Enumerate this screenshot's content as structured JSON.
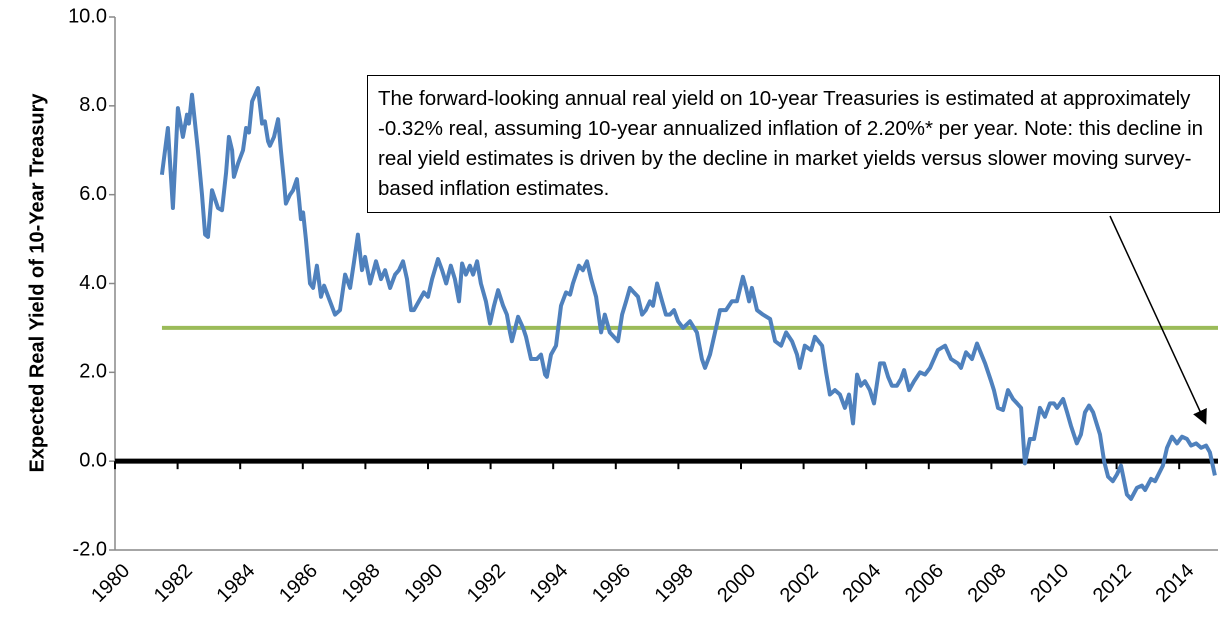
{
  "chart_data": {
    "type": "line",
    "y_label": "Expected Real Yield of 10-Year Treasury",
    "annotation": "The forward-looking annual real yield on 10-year Treasuries is estimated at approximately -0.32% real, assuming 10-year annualized inflation of 2.20%* per year.  Note: this decline in real yield estimates is driven by the decline in market yields versus slower moving survey-based inflation estimates.",
    "x": [
      1981.5,
      1981.69,
      1981.85,
      1982.01,
      1982.17,
      1982.3,
      1982.36,
      1982.46,
      1982.65,
      1982.78,
      1982.88,
      1982.97,
      1983.1,
      1983.29,
      1983.42,
      1983.55,
      1983.64,
      1983.74,
      1983.8,
      1983.93,
      1984.09,
      1984.19,
      1984.28,
      1984.38,
      1984.57,
      1984.7,
      1984.79,
      1984.89,
      1984.95,
      1985.08,
      1985.21,
      1985.3,
      1985.4,
      1985.46,
      1985.59,
      1985.69,
      1985.81,
      1985.88,
      1985.94,
      1986.01,
      1986.1,
      1986.23,
      1986.33,
      1986.45,
      1986.58,
      1986.68,
      1986.87,
      1987.03,
      1987.19,
      1987.35,
      1987.51,
      1987.64,
      1987.76,
      1987.89,
      1987.99,
      1988.15,
      1988.34,
      1988.5,
      1988.63,
      1988.79,
      1988.95,
      1989.07,
      1989.2,
      1989.33,
      1989.46,
      1989.55,
      1989.71,
      1989.87,
      1990.0,
      1990.13,
      1990.32,
      1990.45,
      1990.58,
      1990.73,
      1990.86,
      1990.99,
      1991.09,
      1991.21,
      1991.34,
      1991.44,
      1991.57,
      1991.69,
      1991.85,
      1991.98,
      1992.11,
      1992.24,
      1992.4,
      1992.52,
      1992.62,
      1992.68,
      1992.88,
      1993.04,
      1993.13,
      1993.29,
      1993.48,
      1993.61,
      1993.74,
      1993.8,
      1993.93,
      1994.09,
      1994.25,
      1994.41,
      1994.54,
      1994.63,
      1994.82,
      1994.95,
      1995.08,
      1995.21,
      1995.37,
      1995.53,
      1995.65,
      1995.81,
      1996.07,
      1996.2,
      1996.33,
      1996.45,
      1996.58,
      1996.71,
      1996.84,
      1996.96,
      1997.09,
      1997.19,
      1997.32,
      1997.48,
      1997.6,
      1997.73,
      1997.86,
      1997.99,
      1998.15,
      1998.37,
      1998.59,
      1998.75,
      1998.85,
      1999.01,
      1999.17,
      1999.33,
      1999.52,
      1999.71,
      1999.87,
      2000.06,
      2000.16,
      2000.26,
      2000.35,
      2000.51,
      2000.7,
      2000.93,
      2001.09,
      2001.28,
      2001.44,
      2001.63,
      2001.79,
      2001.88,
      2002.04,
      2002.24,
      2002.36,
      2002.59,
      2002.72,
      2002.84,
      2003.0,
      2003.16,
      2003.32,
      2003.45,
      2003.58,
      2003.71,
      2003.83,
      2003.96,
      2004.12,
      2004.25,
      2004.44,
      2004.57,
      2004.7,
      2004.82,
      2004.98,
      2005.11,
      2005.21,
      2005.37,
      2005.53,
      2005.72,
      2005.88,
      2006.04,
      2006.29,
      2006.52,
      2006.71,
      2006.93,
      2007.03,
      2007.19,
      2007.38,
      2007.54,
      2007.8,
      2007.99,
      2008.08,
      2008.21,
      2008.37,
      2008.53,
      2008.69,
      2008.82,
      2008.95,
      2009.07,
      2009.23,
      2009.36,
      2009.55,
      2009.71,
      2009.87,
      2010.0,
      2010.1,
      2010.29,
      2010.42,
      2010.54,
      2010.73,
      2010.86,
      2010.99,
      2011.12,
      2011.25,
      2011.47,
      2011.6,
      2011.73,
      2011.88,
      2012.01,
      2012.14,
      2012.33,
      2012.46,
      2012.65,
      2012.81,
      2012.91,
      2013.1,
      2013.23,
      2013.48,
      2013.61,
      2013.77,
      2013.93,
      2014.09,
      2014.25,
      2014.38,
      2014.54,
      2014.7,
      2014.86,
      2014.98,
      2015.14
    ],
    "series": [
      {
        "color": "#4f81bd",
        "values": [
          6.45,
          7.5,
          5.7,
          7.95,
          7.3,
          7.8,
          7.6,
          8.25,
          7.0,
          6.0,
          5.1,
          5.05,
          6.1,
          5.7,
          5.65,
          6.5,
          7.3,
          7.0,
          6.4,
          6.7,
          7.0,
          7.5,
          7.4,
          8.1,
          8.4,
          7.6,
          7.65,
          7.2,
          7.1,
          7.3,
          7.7,
          7.0,
          6.3,
          5.8,
          6.0,
          6.1,
          6.35,
          5.9,
          5.45,
          5.6,
          5.0,
          4.0,
          3.9,
          4.4,
          3.7,
          3.95,
          3.6,
          3.3,
          3.4,
          4.2,
          3.9,
          4.5,
          5.1,
          4.3,
          4.6,
          4.0,
          4.5,
          4.1,
          4.3,
          3.9,
          4.2,
          4.3,
          4.5,
          4.1,
          3.4,
          3.4,
          3.6,
          3.8,
          3.7,
          4.1,
          4.55,
          4.3,
          4.0,
          4.4,
          4.1,
          3.6,
          4.45,
          4.2,
          4.4,
          4.2,
          4.5,
          4.0,
          3.6,
          3.1,
          3.5,
          3.85,
          3.5,
          3.3,
          2.9,
          2.7,
          3.25,
          3.0,
          2.8,
          2.3,
          2.3,
          2.4,
          1.95,
          1.9,
          2.4,
          2.6,
          3.5,
          3.8,
          3.75,
          4.0,
          4.4,
          4.3,
          4.5,
          4.1,
          3.7,
          2.9,
          3.3,
          2.9,
          2.7,
          3.3,
          3.6,
          3.9,
          3.8,
          3.7,
          3.3,
          3.4,
          3.6,
          3.5,
          4.0,
          3.6,
          3.3,
          3.3,
          3.4,
          3.15,
          3.0,
          3.15,
          2.9,
          2.3,
          2.1,
          2.4,
          2.9,
          3.4,
          3.4,
          3.6,
          3.6,
          4.15,
          3.9,
          3.6,
          3.9,
          3.4,
          3.3,
          3.2,
          2.7,
          2.6,
          2.9,
          2.7,
          2.4,
          2.1,
          2.6,
          2.5,
          2.8,
          2.6,
          2.0,
          1.5,
          1.6,
          1.5,
          1.2,
          1.5,
          0.85,
          1.95,
          1.7,
          1.8,
          1.6,
          1.3,
          2.2,
          2.2,
          1.9,
          1.7,
          1.7,
          1.85,
          2.05,
          1.6,
          1.8,
          2.0,
          1.95,
          2.1,
          2.5,
          2.6,
          2.3,
          2.2,
          2.1,
          2.45,
          2.3,
          2.65,
          2.2,
          1.8,
          1.6,
          1.2,
          1.15,
          1.6,
          1.4,
          1.3,
          1.2,
          -0.05,
          0.5,
          0.5,
          1.2,
          1.0,
          1.3,
          1.3,
          1.2,
          1.4,
          1.1,
          0.8,
          0.4,
          0.6,
          1.1,
          1.25,
          1.1,
          0.6,
          0.0,
          -0.35,
          -0.45,
          -0.3,
          -0.1,
          -0.75,
          -0.85,
          -0.6,
          -0.55,
          -0.65,
          -0.4,
          -0.45,
          -0.1,
          0.3,
          0.55,
          0.4,
          0.55,
          0.5,
          0.35,
          0.4,
          0.3,
          0.35,
          0.2,
          -0.32
        ]
      }
    ],
    "hlines": [
      {
        "value": 3,
        "color": "#9bbb59",
        "x_range": [
          1981.5,
          2015.24
        ]
      },
      {
        "value": 0,
        "color": "#000000"
      }
    ],
    "xlim": [
      1980,
      2015.24
    ],
    "xticks": [
      1980,
      1982,
      1984,
      1986,
      1988,
      1990,
      1992,
      1994,
      1996,
      1998,
      2000,
      2002,
      2004,
      2006,
      2008,
      2010,
      2012,
      2014
    ],
    "ylim": [
      -2,
      10
    ],
    "yticks": [
      {
        "value": -2,
        "label": "-2.0"
      },
      {
        "value": 0,
        "label": "0.0"
      },
      {
        "value": 2,
        "label": "2.0"
      },
      {
        "value": 4,
        "label": "4.0"
      },
      {
        "value": 6,
        "label": "6.0"
      },
      {
        "value": 8,
        "label": "8.0"
      },
      {
        "value": 10,
        "label": "10.0"
      }
    ]
  }
}
